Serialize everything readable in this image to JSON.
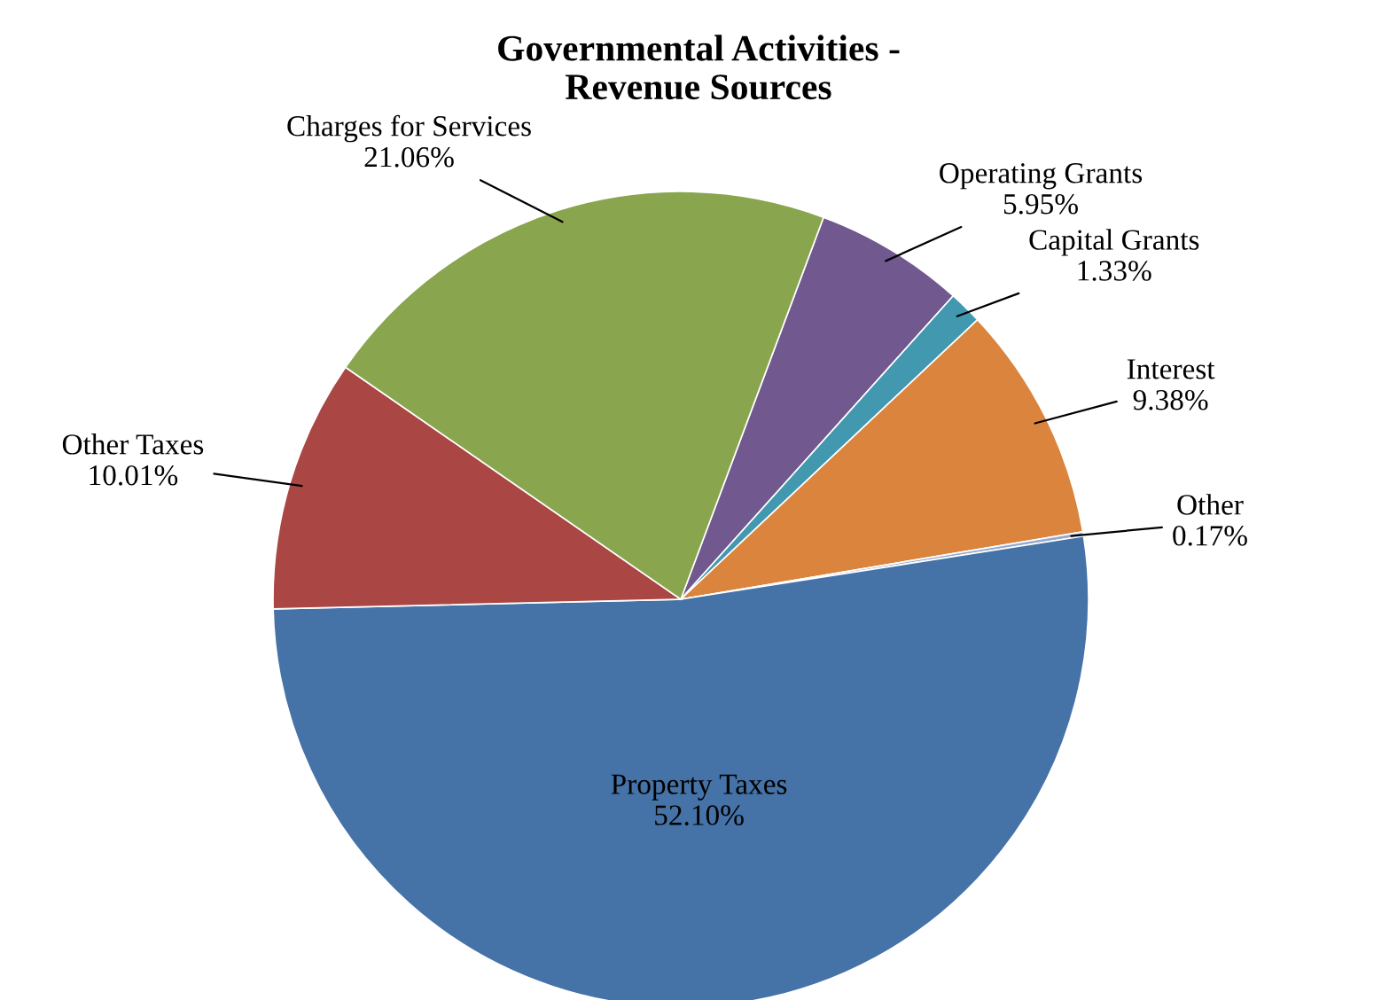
{
  "chart_data": {
    "type": "pie",
    "title": "Governmental Activities -\nRevenue Sources",
    "categories": [
      "Operating Grants",
      "Capital Grants",
      "Interest",
      "Other",
      "Property Taxes",
      "Other Taxes",
      "Charges for Services"
    ],
    "values": [
      5.95,
      1.33,
      9.38,
      0.17,
      52.1,
      10.01,
      21.06
    ],
    "value_labels": [
      "5.95%",
      "1.33%",
      "9.38%",
      "0.17%",
      "52.10%",
      "10.01%",
      "21.06%"
    ],
    "colors": [
      "#71588f",
      "#4198af",
      "#db843d",
      "#93a9cf",
      "#4572a7",
      "#aa4643",
      "#89a54e"
    ],
    "legend": false
  }
}
